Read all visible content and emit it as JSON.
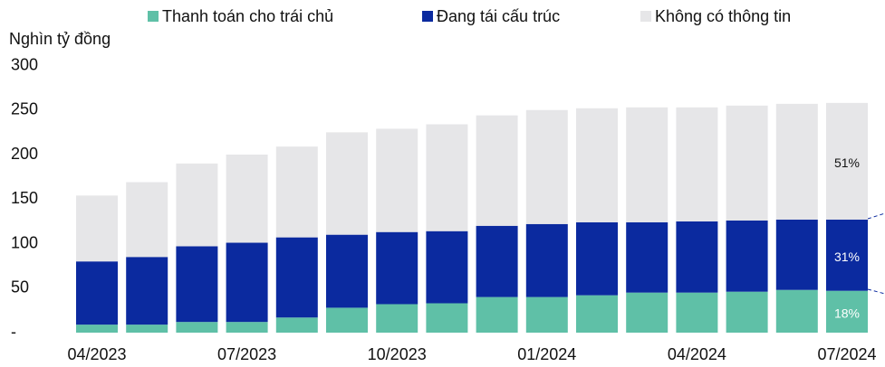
{
  "chart_data": {
    "type": "bar",
    "stacked": true,
    "y_axis_label": "Nghìn tỷ đồng",
    "categories": [
      "04/2023",
      null,
      null,
      "07/2023",
      null,
      null,
      "10/2023",
      null,
      null,
      "01/2024",
      null,
      null,
      "04/2024",
      null,
      null,
      "07/2024"
    ],
    "series": [
      {
        "name": "Thanh toán cho trái chủ",
        "color": "#5fc0a7",
        "values": [
          9,
          9,
          12,
          12,
          17,
          28,
          32,
          33,
          40,
          40,
          42,
          45,
          45,
          46,
          48,
          47
        ]
      },
      {
        "name": "Đang tái cấu trúc",
        "color": "#0b2a9f",
        "values": [
          71,
          76,
          85,
          89,
          90,
          82,
          81,
          81,
          80,
          82,
          82,
          79,
          80,
          80,
          79,
          80
        ]
      },
      {
        "name": "Không có thông tin",
        "color": "#e6e6e8",
        "values": [
          74,
          84,
          93,
          99,
          102,
          115,
          116,
          120,
          124,
          128,
          128,
          129,
          128,
          129,
          130,
          131
        ]
      }
    ],
    "annotations": [
      {
        "series": 0,
        "text": "18%"
      },
      {
        "series": 1,
        "text": "31%"
      },
      {
        "series": 2,
        "text": "51%"
      }
    ],
    "ylim": [
      0,
      300
    ],
    "yticks": [
      {
        "value": 0,
        "label": "-"
      },
      50,
      100,
      150,
      200,
      250,
      300
    ],
    "grid": false,
    "legend": "top"
  }
}
